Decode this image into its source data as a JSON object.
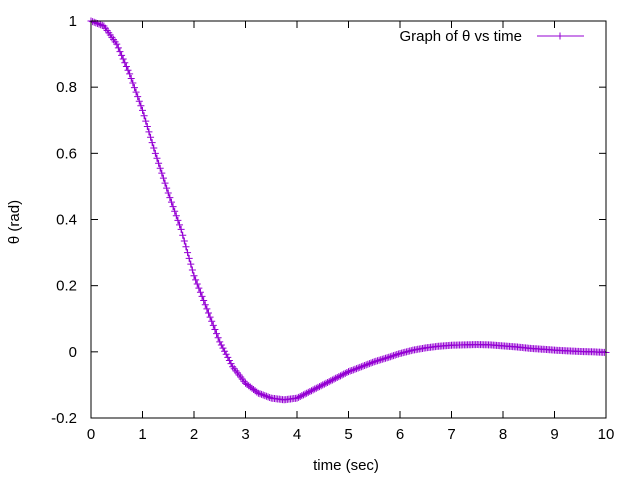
{
  "chart_data": {
    "type": "line",
    "xlabel": "time (sec)",
    "ylabel": "θ (rad)",
    "xlim": [
      0,
      10
    ],
    "ylim": [
      -0.2,
      1
    ],
    "xticks": [
      "0",
      "1",
      "2",
      "3",
      "4",
      "5",
      "6",
      "7",
      "8",
      "9",
      "10"
    ],
    "yticks": [
      "-0.2",
      "0",
      "0.2",
      "0.4",
      "0.6",
      "0.8",
      "1"
    ],
    "xtick_values": [
      0,
      1,
      2,
      3,
      4,
      5,
      6,
      7,
      8,
      9,
      10
    ],
    "ytick_values": [
      -0.2,
      0,
      0.2,
      0.4,
      0.6,
      0.8,
      1
    ],
    "grid": false,
    "legend_position": "top-right",
    "series": [
      {
        "name": "Graph of θ vs time",
        "color": "#9400d3",
        "marker": "plus",
        "x": [
          0,
          0.25,
          0.5,
          0.75,
          1.0,
          1.25,
          1.5,
          1.75,
          2.0,
          2.25,
          2.5,
          2.75,
          3.0,
          3.25,
          3.5,
          3.75,
          4.0,
          4.25,
          4.5,
          4.75,
          5.0,
          5.25,
          5.5,
          5.75,
          6.0,
          6.25,
          6.5,
          6.75,
          7.0,
          7.25,
          7.5,
          7.75,
          8.0,
          8.25,
          8.5,
          8.75,
          9.0,
          9.25,
          9.5,
          9.75,
          10.0
        ],
        "y": [
          1.0,
          0.985,
          0.93,
          0.84,
          0.73,
          0.6,
          0.48,
          0.37,
          0.23,
          0.13,
          0.03,
          -0.045,
          -0.095,
          -0.125,
          -0.14,
          -0.145,
          -0.14,
          -0.12,
          -0.1,
          -0.08,
          -0.06,
          -0.045,
          -0.03,
          -0.018,
          -0.005,
          0.005,
          0.012,
          0.017,
          0.02,
          0.021,
          0.022,
          0.021,
          0.018,
          0.015,
          0.011,
          0.008,
          0.005,
          0.003,
          0.001,
          0.0,
          -0.002
        ]
      }
    ]
  }
}
